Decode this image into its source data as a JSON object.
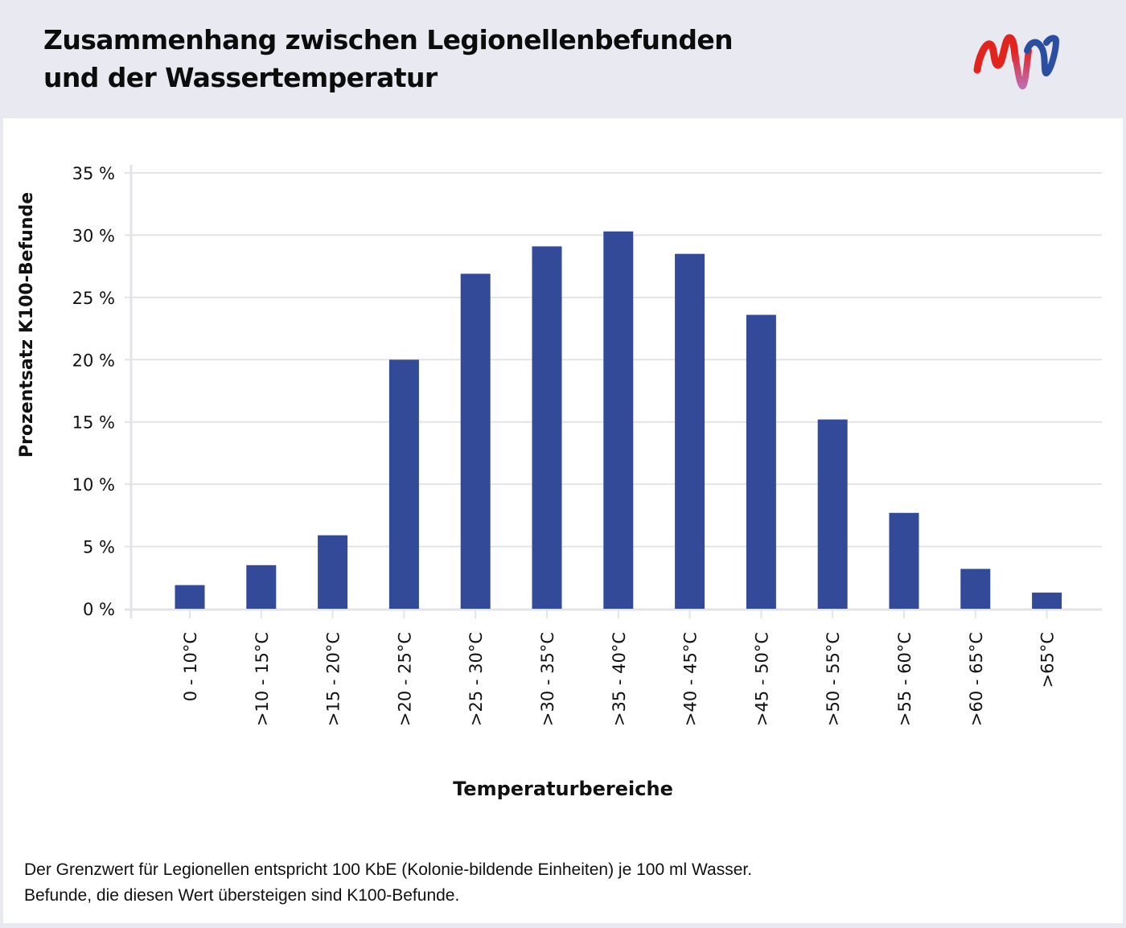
{
  "header": {
    "title_line1": "Zusammenhang zwischen Legionellenbefunden",
    "title_line2": "und der Wassertemperatur",
    "logo_icon": "mvv-logo-icon"
  },
  "colors": {
    "bar": "#334a99",
    "grid": "#e4e4e8",
    "background": "#e9e9f1",
    "card": "#ffffff",
    "logo_red": "#e2241f",
    "logo_purple": "#c06bb0",
    "logo_blue": "#2b4fa0"
  },
  "chart_data": {
    "type": "bar",
    "title": "Zusammenhang zwischen Legionellenbefunden und der Wassertemperatur",
    "xlabel": "Temperaturbereiche",
    "ylabel": "Prozentsatz K100-Befunde",
    "ylim": [
      0,
      35
    ],
    "yticks": [
      0,
      5,
      10,
      15,
      20,
      25,
      30,
      35
    ],
    "ytick_labels": [
      "0 %",
      "5 %",
      "10 %",
      "15 %",
      "20 %",
      "25 %",
      "30 %",
      "35 %"
    ],
    "grid": true,
    "legend": "none",
    "categories": [
      "0 - 10°C",
      ">10 - 15°C",
      ">15 - 20°C",
      ">20 - 25°C",
      ">25 - 30°C",
      ">30 - 35°C",
      ">35 - 40°C",
      ">40 - 45°C",
      ">45 - 50°C",
      ">50 - 55°C",
      ">55 - 60°C",
      ">60 - 65°C",
      ">65°C"
    ],
    "values": [
      1.9,
      3.5,
      5.9,
      20.0,
      26.9,
      29.1,
      30.3,
      28.5,
      23.6,
      15.2,
      7.7,
      3.2,
      1.3
    ],
    "unit": "%"
  },
  "footnote": {
    "line1": "Der Grenzwert für Legionellen entspricht 100 KbE (Kolonie-bildende Einheiten) je 100 ml Wasser.",
    "line2": "Befunde, die diesen Wert übersteigen sind K100-Befunde."
  }
}
